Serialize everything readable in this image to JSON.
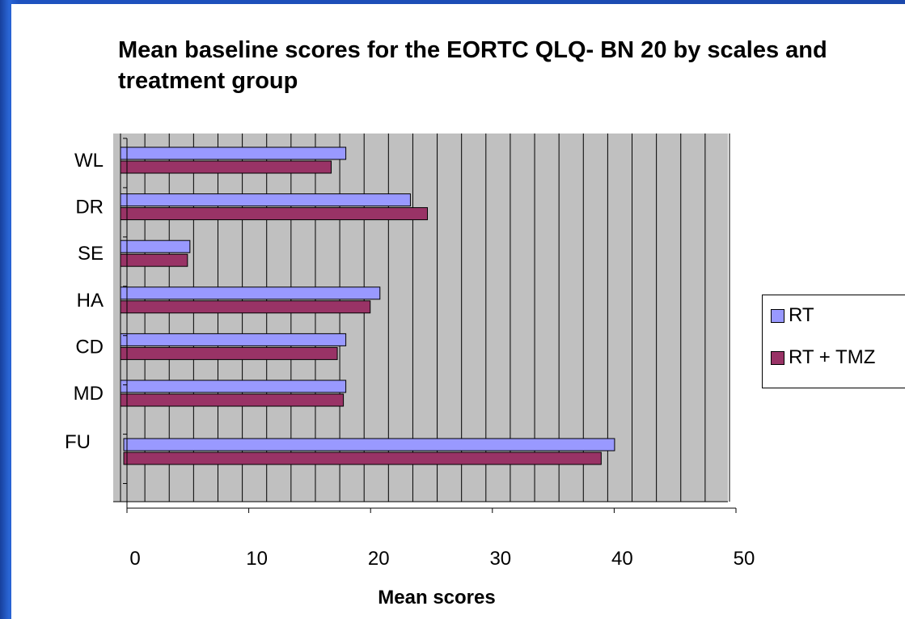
{
  "colors": {
    "slide_background": "#1f4fb0",
    "plot_area": "#c0c0c0",
    "series_rt": "#9999ff",
    "series_rt_tmz": "#993366"
  },
  "chart_data": {
    "type": "bar",
    "orientation": "horizontal",
    "title": "Mean baseline scores for the EORTC QLQ- BN 20 by scales and treatment group",
    "xlabel": "Mean scores",
    "ylabel": "",
    "xlim": [
      0,
      50
    ],
    "x_ticks": [
      0,
      10,
      20,
      30,
      40,
      50
    ],
    "x_tick_labels": [
      "0",
      "10",
      "20",
      "30",
      "40",
      "50"
    ],
    "grid": "vertical, every 2 units",
    "legend_position": "right",
    "categories": [
      "WL",
      "DR",
      "SE",
      "HA",
      "CD",
      "MD",
      "FU"
    ],
    "series": [
      {
        "name": "RT",
        "values": [
          18.5,
          23.8,
          5.7,
          21.3,
          18.5,
          18.5,
          40.3
        ]
      },
      {
        "name": "RT + TMZ",
        "values": [
          17.3,
          25.2,
          5.5,
          20.5,
          17.8,
          18.3,
          39.2
        ]
      }
    ]
  }
}
